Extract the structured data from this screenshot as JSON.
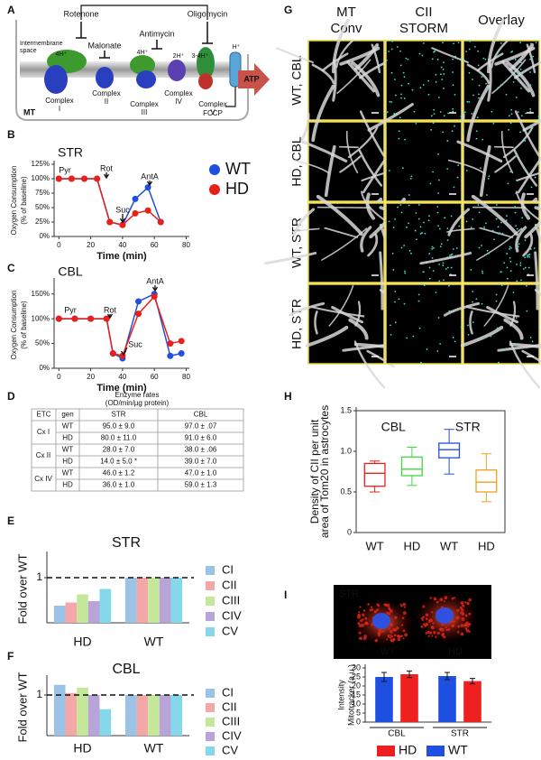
{
  "panel_labels": [
    "A",
    "B",
    "C",
    "D",
    "E",
    "F",
    "G",
    "H",
    "I"
  ],
  "diagram": {
    "inhibitors": [
      "Rotenone",
      "Malonate",
      "Antimycin",
      "Oligomycin"
    ],
    "space_label": [
      "Intermembrane",
      "space"
    ],
    "protons": [
      "4H⁺",
      "4H⁺",
      "2H⁺",
      "3-4H⁺",
      "H⁺"
    ],
    "complexes": [
      [
        "Complex",
        "I"
      ],
      [
        "Complex",
        "II"
      ],
      [
        "Complex",
        "III"
      ],
      [
        "Complex",
        "IV"
      ],
      [
        "Complex",
        "V"
      ]
    ],
    "product": "ATP",
    "uncoupler": "FCCP",
    "compartment": "MT"
  },
  "table": {
    "title": "Enzyme rates",
    "subtitle": "(OD/min/µg protein)",
    "header": [
      "ETC",
      "gen",
      "STR",
      "CBL"
    ],
    "groups": [
      {
        "name": "Cx I",
        "rows": [
          [
            "WT",
            "95.0 ± 9.0",
            "97.0 ± .07"
          ],
          [
            "HD",
            "80.0 ± 11.0",
            "91.0 ± 6.0"
          ]
        ]
      },
      {
        "name": "Cx II",
        "rows": [
          [
            "WT",
            "28.0 ± 7.0",
            "38.0 ± .06"
          ],
          [
            "HD",
            "14.0 ± 5.0 *",
            "39.0 ± 7.0"
          ]
        ]
      },
      {
        "name": "Cx IV",
        "rows": [
          [
            "WT",
            "46.0 ± 1.2",
            "47.0 ± 1.0"
          ],
          [
            "HD",
            "36.0 ± 1.0",
            "59.0 ± 1.3"
          ]
        ]
      }
    ]
  },
  "microscopy": {
    "columns": [
      [
        "MT",
        "Conv"
      ],
      [
        "CII",
        "STORM"
      ],
      [
        "Overlay"
      ]
    ],
    "rows": [
      "WT, CBL",
      "HD, CBL",
      "WT, STR",
      "HD, STR"
    ]
  },
  "cell_image": {
    "labels": [
      "STR",
      "WT",
      "HD"
    ]
  },
  "chart_data": [
    {
      "type": "line",
      "title": "STR",
      "x_label": "Time (min)",
      "y_label": [
        "Oxygen Consumption",
        "(% of baseline)"
      ],
      "x": [
        0,
        8,
        16,
        24,
        32,
        40,
        48,
        56,
        64
      ],
      "series": [
        {
          "name": "WT",
          "color": "#1f4fe0",
          "values": [
            100,
            100,
            100,
            100,
            25,
            20,
            65,
            85,
            25
          ]
        },
        {
          "name": "HD",
          "color": "#e8201a",
          "values": [
            100,
            100,
            100,
            100,
            25,
            20,
            40,
            45,
            25
          ]
        }
      ],
      "annotations": [
        "Pyr",
        "Rot",
        "Suc",
        "AntA"
      ],
      "xlim": [
        -3,
        82
      ],
      "xticks": [
        0,
        20,
        40,
        60,
        80
      ],
      "ylim": [
        0,
        125
      ],
      "yticks": [
        {
          "value": 0,
          "label": "0%"
        },
        {
          "value": 25,
          "label": "25%"
        },
        {
          "value": 50,
          "label": "50%"
        },
        {
          "value": 75,
          "label": "75%"
        },
        {
          "value": 100,
          "label": "100%"
        },
        {
          "value": 125,
          "label": "125%"
        }
      ],
      "legend": "right"
    },
    {
      "type": "line",
      "title": "CBL",
      "x_label": "Time (min)",
      "y_label": [
        "Oxygen Consumption",
        "(% of baseline)"
      ],
      "x": [
        0,
        10,
        20,
        30,
        34,
        40,
        50,
        60,
        70,
        77
      ],
      "series": [
        {
          "color": "#1f4fe0",
          "values": [
            100,
            100,
            100,
            100,
            30,
            20,
            135,
            150,
            25,
            30
          ]
        },
        {
          "color": "#e8201a",
          "values": [
            100,
            100,
            100,
            100,
            30,
            25,
            110,
            145,
            50,
            55
          ]
        }
      ],
      "annotations": [
        "Pyr",
        "Rot",
        "Suc",
        "AntA"
      ],
      "xlim": [
        -3,
        82
      ],
      "xticks": [
        0,
        20,
        40,
        60,
        80
      ],
      "ylim": [
        0,
        175
      ],
      "yticks": [
        {
          "value": 0,
          "label": "0%"
        },
        {
          "value": 50,
          "label": "50%"
        },
        {
          "value": 100,
          "label": "100%"
        },
        {
          "value": 150,
          "label": "150%"
        }
      ]
    },
    {
      "type": "bar",
      "title": "STR",
      "y_label": "Fold over WT",
      "categories": [
        "HD",
        "WT"
      ],
      "series": [
        {
          "name": "CI",
          "color": "#9cc3e6",
          "values": [
            0.38,
            1
          ]
        },
        {
          "name": "CII",
          "color": "#f4a7a7",
          "values": [
            0.45,
            1
          ]
        },
        {
          "name": "CIII",
          "color": "#c5e79a",
          "values": [
            0.63,
            1
          ]
        },
        {
          "name": "CIV",
          "color": "#b8a4d8",
          "values": [
            0.48,
            1
          ]
        },
        {
          "name": "CV",
          "color": "#84d8ea",
          "values": [
            0.75,
            1
          ]
        }
      ],
      "ylim": [
        0,
        1.5
      ],
      "yticks": [
        1
      ],
      "reference_line": 1,
      "legend": "right"
    },
    {
      "type": "bar",
      "title": "CBL",
      "y_label": "Fold over WT",
      "categories": [
        "HD",
        "WT"
      ],
      "series": [
        {
          "name": "CI",
          "color": "#9cc3e6",
          "values": [
            1.25,
            1
          ]
        },
        {
          "name": "CII",
          "color": "#f4a7a7",
          "values": [
            1.05,
            1
          ]
        },
        {
          "name": "CIII",
          "color": "#c5e79a",
          "values": [
            1.18,
            1
          ]
        },
        {
          "name": "CIV",
          "color": "#b8a4d8",
          "values": [
            1.0,
            1
          ]
        },
        {
          "name": "CV",
          "color": "#84d8ea",
          "values": [
            0.65,
            1
          ]
        }
      ],
      "ylim": [
        0,
        1.4
      ],
      "yticks": [
        1
      ],
      "reference_line": 1,
      "legend": "right"
    },
    {
      "type": "box",
      "y_label": [
        "Density of CII per unit",
        "area of Tom20 in astrocytes"
      ],
      "groups": [
        "CBL",
        "STR"
      ],
      "categories": [
        "WT",
        "HD",
        "WT",
        "HD"
      ],
      "boxes": [
        {
          "color": "#e8201a",
          "whisker_low": 0.5,
          "q1": 0.57,
          "median": 0.73,
          "q3": 0.85,
          "whisker_high": 0.88
        },
        {
          "color": "#3ddc3a",
          "whisker_low": 0.58,
          "q1": 0.7,
          "median": 0.78,
          "q3": 0.93,
          "whisker_high": 1.05
        },
        {
          "color": "#1f4fe0",
          "whisker_low": 0.72,
          "q1": 0.92,
          "median": 1.02,
          "q3": 1.1,
          "whisker_high": 1.27
        },
        {
          "color": "#f0a020",
          "whisker_low": 0.38,
          "q1": 0.5,
          "median": 0.62,
          "q3": 0.77,
          "whisker_high": 0.97
        }
      ],
      "ylim": [
        0,
        1.5
      ],
      "yticks": [
        0,
        0.5,
        {
          "value": 1,
          "label": "1.0"
        },
        1.5
      ]
    },
    {
      "type": "bar",
      "y_label": [
        "Intensity",
        "Mitotracker (a.u.)"
      ],
      "categories": [
        "CBL",
        "STR"
      ],
      "series": [
        {
          "name": "WT",
          "color": "#1f4fe0",
          "values": [
            25,
            25.5
          ],
          "errors": [
            2.5,
            2
          ]
        },
        {
          "name": "HD",
          "color": "#ee2020",
          "values": [
            26.5,
            22.7
          ],
          "errors": [
            1.8,
            1.5
          ]
        }
      ],
      "ylim": [
        0,
        30
      ],
      "yticks": [
        0,
        5,
        10,
        15,
        20,
        25,
        30
      ],
      "legend": "bottom"
    }
  ]
}
